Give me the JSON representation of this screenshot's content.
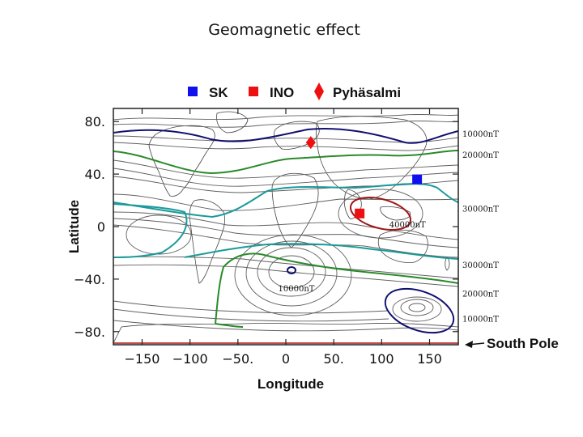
{
  "slide": {
    "title": "Geomagnetic effect"
  },
  "chart_data": {
    "type": "contour-map",
    "title": "Geomagnetic effect",
    "xlabel": "Longitude",
    "ylabel": "Latitude",
    "xlim": [
      -180,
      180
    ],
    "ylim": [
      -90,
      90
    ],
    "x_ticks": [
      {
        "value": -150,
        "label": "−150"
      },
      {
        "value": -100,
        "label": "−100"
      },
      {
        "value": -50,
        "label": "−50."
      },
      {
        "value": 0,
        "label": "0"
      },
      {
        "value": 50,
        "label": "50."
      },
      {
        "value": 100,
        "label": "100"
      },
      {
        "value": 150,
        "label": "150"
      }
    ],
    "y_ticks": [
      {
        "value": 80,
        "label": "80."
      },
      {
        "value": 40,
        "label": "40."
      },
      {
        "value": 0,
        "label": "0"
      },
      {
        "value": -40,
        "label": "−40."
      },
      {
        "value": -80,
        "label": "−80."
      }
    ],
    "legend": [
      {
        "name": "SK",
        "marker": "square",
        "color": "#1010ee"
      },
      {
        "name": "INO",
        "marker": "square",
        "color": "#ee1010"
      },
      {
        "name": "Pyhäsalmi",
        "marker": "diamond",
        "color": "#ee1010"
      }
    ],
    "sites": [
      {
        "name": "SK",
        "lon": 137,
        "lat": 36,
        "marker": "square",
        "color": "#1010ee"
      },
      {
        "name": "INO",
        "lon": 77,
        "lat": 10,
        "marker": "square",
        "color": "#ee1010"
      },
      {
        "name": "Pyhäsalmi",
        "lon": 26,
        "lat": 64,
        "marker": "diamond",
        "color": "#ee1010"
      }
    ],
    "contour_labels": [
      {
        "text": "10000nT",
        "lon": 187,
        "lat": 71
      },
      {
        "text": "20000nT",
        "lon": 187,
        "lat": 55
      },
      {
        "text": "30000nT",
        "lon": 187,
        "lat": 14
      },
      {
        "text": "30000nT",
        "lon": 187,
        "lat": -29
      },
      {
        "text": "20000nT",
        "lon": 187,
        "lat": -51
      },
      {
        "text": "10000nT",
        "lon": 187,
        "lat": -70
      },
      {
        "text": "40000nT",
        "lon": 108,
        "lat": 2
      },
      {
        "text": "10000nT",
        "lon": -8,
        "lat": -47
      }
    ],
    "south_pole_label": "South Pole",
    "contour_colors": {
      "10000nT": "#101070",
      "20000nT": "#2a8a2a",
      "30000nT": "#1a9a9a",
      "40000nT": "#a01818",
      "other": "#606060",
      "coast": "#444444"
    }
  }
}
